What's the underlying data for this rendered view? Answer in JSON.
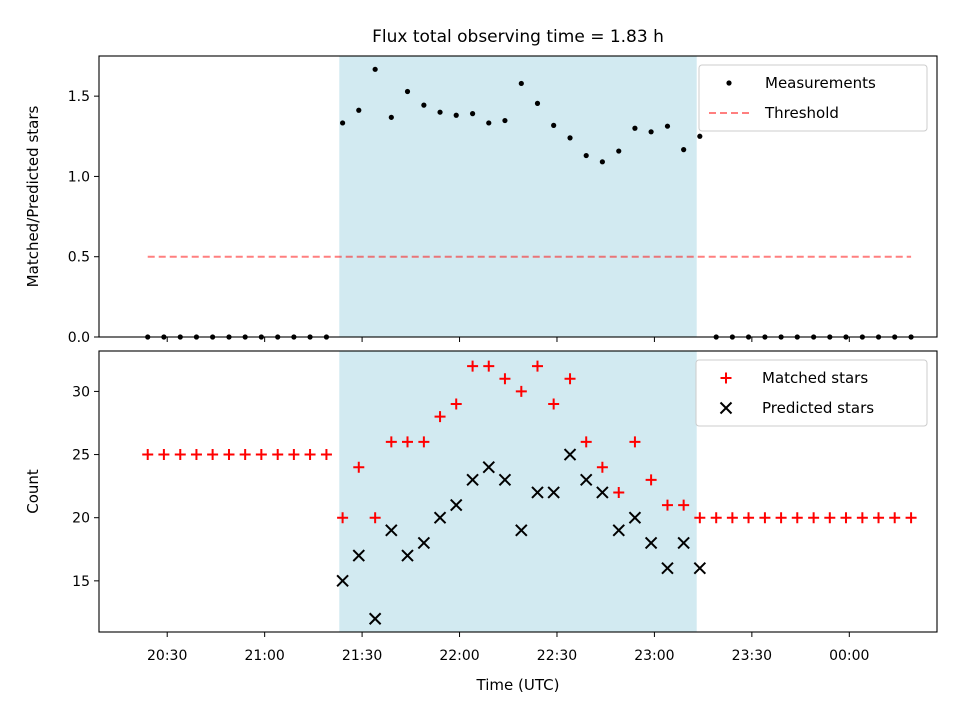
{
  "chart_data": {
    "type": "scatter",
    "title": "Flux total observing time = 1.83 h",
    "xlabel": "Time (UTC)",
    "x_unit": "hours",
    "x_tick_labels": [
      "20:30",
      "21:00",
      "21:30",
      "22:00",
      "22:30",
      "23:00",
      "23:30",
      "00:00"
    ],
    "x_tick_values": [
      20.5,
      21.0,
      21.5,
      22.0,
      22.5,
      23.0,
      23.5,
      24.0
    ],
    "xlim": [
      20.15,
      24.45
    ],
    "x": [
      20.4,
      20.483,
      20.567,
      20.65,
      20.733,
      20.817,
      20.9,
      20.983,
      21.067,
      21.15,
      21.233,
      21.317,
      21.4,
      21.483,
      21.567,
      21.65,
      21.733,
      21.817,
      21.9,
      21.983,
      22.067,
      22.15,
      22.233,
      22.317,
      22.4,
      22.483,
      22.567,
      22.65,
      22.733,
      22.817,
      22.9,
      22.983,
      23.067,
      23.15,
      23.233,
      23.317,
      23.4,
      23.483,
      23.567,
      23.65,
      23.733,
      23.817,
      23.9,
      23.983,
      24.067,
      24.15,
      24.233,
      24.317
    ],
    "observing_span": {
      "start": 21.383,
      "end": 23.217,
      "color": "#add8e6"
    },
    "panels": [
      {
        "ylabel": "Matched/Predicted stars",
        "ylim": [
          0,
          1.75
        ],
        "yticks": [
          "0.0",
          "0.5",
          "1.0",
          "1.5"
        ],
        "ytick_values": [
          0,
          0.5,
          1.0,
          1.5
        ],
        "legend_position": "upper right",
        "series": [
          {
            "name": "Measurements",
            "marker": "point",
            "color": "#000000",
            "values": [
              0,
              0,
              0,
              0,
              0,
              0,
              0,
              0,
              0,
              0,
              0,
              0,
              1.333,
              1.412,
              1.667,
              1.368,
              1.529,
              1.444,
              1.4,
              1.381,
              1.391,
              1.333,
              1.348,
              1.579,
              1.455,
              1.318,
              1.24,
              1.13,
              1.091,
              1.158,
              1.3,
              1.278,
              1.313,
              1.167,
              1.25,
              0,
              0,
              0,
              0,
              0,
              0,
              0,
              0,
              0,
              0,
              0,
              0,
              0
            ]
          },
          {
            "name": "Threshold",
            "style": "dashed",
            "color": "#ff0000",
            "x_range": [
              20.4,
              24.317
            ],
            "value": 0.5
          }
        ]
      },
      {
        "ylabel": "Count",
        "ylim": [
          10.95,
          33.2
        ],
        "yticks": [
          "15",
          "20",
          "25",
          "30"
        ],
        "ytick_values": [
          15,
          20,
          25,
          30
        ],
        "legend_position": "upper right",
        "series": [
          {
            "name": "Matched stars",
            "marker": "plus",
            "color": "#ff0000",
            "values": [
              25,
              25,
              25,
              25,
              25,
              25,
              25,
              25,
              25,
              25,
              25,
              25,
              20,
              24,
              20,
              26,
              26,
              26,
              28,
              29,
              32,
              32,
              31,
              30,
              32,
              29,
              31,
              26,
              24,
              22,
              26,
              23,
              21,
              21,
              20,
              20,
              20,
              20,
              20,
              20,
              20,
              20,
              20,
              20,
              20,
              20,
              20,
              20
            ]
          },
          {
            "name": "Predicted stars",
            "marker": "x",
            "color": "#000000",
            "values": [
              null,
              null,
              null,
              null,
              null,
              null,
              null,
              null,
              null,
              null,
              null,
              null,
              15,
              17,
              12,
              19,
              17,
              18,
              20,
              21,
              23,
              24,
              23,
              19,
              22,
              22,
              25,
              23,
              22,
              19,
              20,
              18,
              16,
              18,
              16,
              null,
              null,
              null,
              null,
              null,
              null,
              null,
              null,
              null,
              null,
              null,
              null,
              null
            ]
          }
        ]
      }
    ]
  }
}
